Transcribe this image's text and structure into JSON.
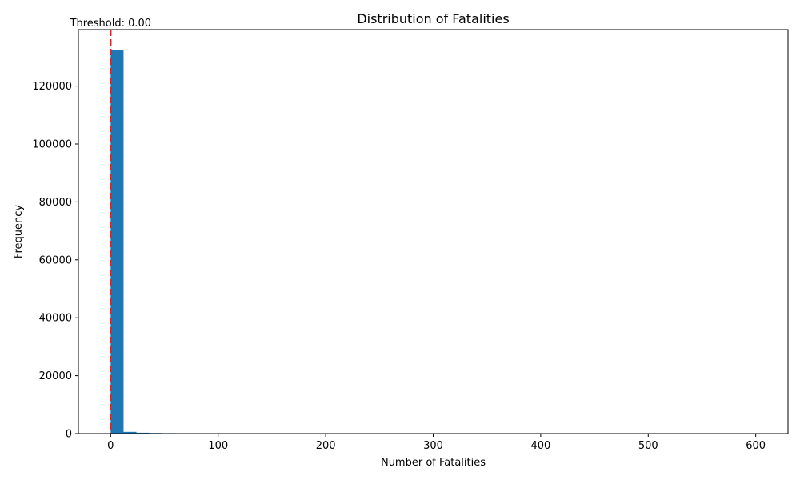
{
  "chart_data": {
    "type": "bar",
    "title": "Distribution of Fatalities",
    "xlabel": "Number of Fatalities",
    "ylabel": "Frequency",
    "xlim": [
      -30,
      630
    ],
    "ylim": [
      0,
      139500
    ],
    "xticks": [
      0,
      100,
      200,
      300,
      400,
      500,
      600
    ],
    "yticks": [
      0,
      20000,
      40000,
      60000,
      80000,
      100000,
      120000
    ],
    "bin_width": 12,
    "bin_starts": [
      0,
      12,
      24,
      36,
      48,
      60
    ],
    "values": [
      132500,
      600,
      300,
      200,
      150,
      100
    ],
    "bar_color": "#1f77b4",
    "threshold": {
      "value": 0,
      "label": "Threshold: 0.00",
      "color": "#d62728",
      "style": "dashed"
    },
    "grid": false,
    "legend": "none"
  }
}
